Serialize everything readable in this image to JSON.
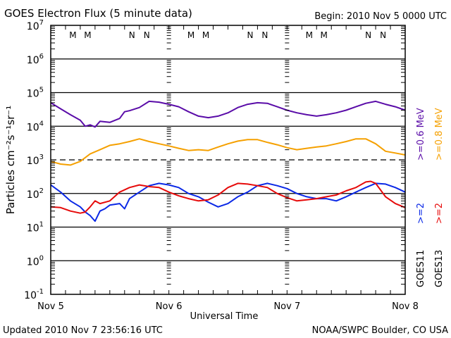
{
  "header": {
    "title": "GOES Electron Flux (5 minute data)",
    "begin": "Begin: 2010 Nov 5 0000 UTC"
  },
  "footer": {
    "updated": "Updated 2010 Nov  7 23:56:16 UTC",
    "credit": "NOAA/SWPC Boulder, CO USA"
  },
  "colors": {
    "goes11_high": "#5a0ca8",
    "goes13_high": "#f5a000",
    "goes11_low": "#0a28e6",
    "goes13_low": "#e60a0a",
    "axis": "#000000"
  },
  "chart_data": {
    "type": "line",
    "title": "GOES Electron Flux (5 minute data)",
    "xlabel": "Universal Time",
    "ylabel": "Particles cm⁻²s⁻¹sr⁻¹",
    "yscale": "log",
    "ylim": [
      0.1,
      10000000
    ],
    "xlim_hours": [
      0,
      72
    ],
    "x_tick_labels": [
      "Nov 5",
      "Nov 6",
      "Nov 7",
      "Nov 8"
    ],
    "x_tick_hours": [
      0,
      24,
      48,
      72
    ],
    "y_ticks": [
      {
        "value": 10000000,
        "base": "10",
        "exp": "7"
      },
      {
        "value": 1000000,
        "base": "10",
        "exp": "6"
      },
      {
        "value": 100000,
        "base": "10",
        "exp": "5"
      },
      {
        "value": 10000,
        "base": "10",
        "exp": "4"
      },
      {
        "value": 1000,
        "base": "10",
        "exp": "3"
      },
      {
        "value": 100,
        "base": "10",
        "exp": "2"
      },
      {
        "value": 10,
        "base": "10",
        "exp": "1"
      },
      {
        "value": 1,
        "base": "10",
        "exp": "0"
      },
      {
        "value": 0.1,
        "base": "10",
        "exp": "-1"
      }
    ],
    "grid": true,
    "threshold_line": {
      "value": 1000,
      "style": "dashed"
    },
    "legend_position": "right",
    "legend": {
      "instruments": [
        "GOES11",
        "GOES13"
      ],
      "high_energy": [
        ">=0.6 MeV",
        ">=0.8 MeV"
      ],
      "low_energy": [
        ">=2",
        ">=2"
      ],
      "unit": "MeV"
    },
    "midnight_noon_markers": [
      {
        "label": "M",
        "hour": 4.5,
        "color": "goes13_low"
      },
      {
        "label": "M",
        "hour": 7.5,
        "color": "goes11_low"
      },
      {
        "label": "N",
        "hour": 16.5,
        "color": "goes13_low"
      },
      {
        "label": "N",
        "hour": 19.5,
        "color": "goes11_low"
      },
      {
        "label": "M",
        "hour": 28.5,
        "color": "goes13_low"
      },
      {
        "label": "M",
        "hour": 31.5,
        "color": "goes11_low"
      },
      {
        "label": "N",
        "hour": 40.5,
        "color": "goes13_low"
      },
      {
        "label": "N",
        "hour": 43.5,
        "color": "goes11_low"
      },
      {
        "label": "M",
        "hour": 52.5,
        "color": "goes13_low"
      },
      {
        "label": "M",
        "hour": 55.5,
        "color": "goes11_low"
      },
      {
        "label": "N",
        "hour": 64.5,
        "color": "goes13_low"
      },
      {
        "label": "N",
        "hour": 67.5,
        "color": "goes11_low"
      }
    ],
    "series": [
      {
        "name": "GOES11 >=0.6 MeV",
        "color_key": "goes11_high",
        "hours": [
          0,
          2,
          4,
          6,
          7,
          8,
          9,
          10,
          12,
          14,
          15,
          16,
          18,
          20,
          22,
          24,
          26,
          28,
          30,
          32,
          34,
          36,
          38,
          40,
          42,
          44,
          46,
          48,
          50,
          52,
          54,
          56,
          58,
          60,
          62,
          64,
          66,
          68,
          70,
          72
        ],
        "values": [
          50000,
          33000,
          22000,
          15000,
          10000,
          11000,
          9500,
          14000,
          13000,
          17000,
          27000,
          29000,
          36000,
          55000,
          52000,
          45000,
          38000,
          27000,
          20000,
          18000,
          20000,
          25000,
          36000,
          45000,
          50000,
          48000,
          38000,
          30000,
          25000,
          22000,
          20000,
          22000,
          25000,
          30000,
          38000,
          48000,
          55000,
          45000,
          38000,
          30000
        ]
      },
      {
        "name": "GOES13 >=0.8 MeV",
        "color_key": "goes13_high",
        "hours": [
          0,
          2,
          4,
          6,
          8,
          10,
          12,
          14,
          16,
          18,
          20,
          22,
          24,
          26,
          28,
          30,
          32,
          34,
          36,
          38,
          40,
          42,
          44,
          46,
          48,
          50,
          52,
          54,
          56,
          58,
          60,
          62,
          64,
          66,
          68,
          70,
          72
        ],
        "values": [
          900,
          750,
          700,
          900,
          1500,
          2000,
          2700,
          3000,
          3500,
          4200,
          3500,
          3000,
          2600,
          2200,
          1900,
          2000,
          1900,
          2400,
          3000,
          3600,
          4000,
          4000,
          3300,
          2800,
          2300,
          2000,
          2200,
          2400,
          2600,
          3000,
          3500,
          4200,
          4200,
          3000,
          1800,
          1600,
          1400
        ]
      },
      {
        "name": "GOES11 >=2 MeV",
        "color_key": "goes11_low",
        "hours": [
          0,
          2,
          4,
          6,
          7,
          8,
          9,
          10,
          11,
          12,
          14,
          15,
          16,
          18,
          20,
          22,
          24,
          26,
          28,
          30,
          32,
          34,
          36,
          38,
          40,
          42,
          44,
          46,
          48,
          50,
          52,
          54,
          56,
          58,
          60,
          62,
          64,
          66,
          68,
          70,
          72
        ],
        "values": [
          180,
          110,
          60,
          40,
          28,
          22,
          15,
          30,
          35,
          45,
          50,
          35,
          70,
          110,
          170,
          200,
          180,
          150,
          100,
          80,
          55,
          40,
          50,
          80,
          110,
          170,
          200,
          170,
          140,
          100,
          80,
          70,
          70,
          60,
          80,
          110,
          150,
          200,
          190,
          150,
          110
        ]
      },
      {
        "name": "GOES13 >=2 MeV",
        "color_key": "goes13_low",
        "hours": [
          0,
          2,
          4,
          6,
          7,
          8,
          9,
          10,
          12,
          14,
          16,
          18,
          20,
          22,
          24,
          26,
          28,
          30,
          32,
          34,
          36,
          38,
          40,
          42,
          44,
          46,
          48,
          50,
          52,
          54,
          56,
          58,
          60,
          62,
          64,
          65,
          66,
          68,
          70,
          72
        ],
        "values": [
          40,
          38,
          30,
          26,
          28,
          40,
          60,
          50,
          60,
          110,
          150,
          180,
          160,
          150,
          110,
          85,
          70,
          60,
          65,
          90,
          150,
          200,
          190,
          170,
          150,
          100,
          75,
          60,
          65,
          70,
          80,
          90,
          120,
          150,
          220,
          230,
          200,
          80,
          50,
          38
        ]
      }
    ]
  }
}
